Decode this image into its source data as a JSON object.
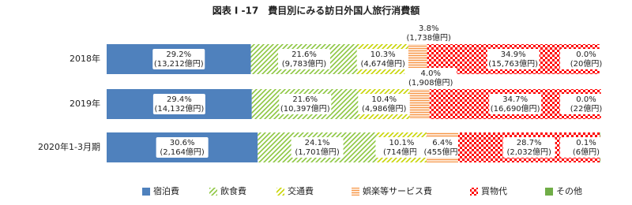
{
  "chart_data": {
    "type": "stacked-bar-horizontal",
    "title": "図表 I -17　費目別にみる訪日外国人旅行消費額",
    "categories": [
      "2018年",
      "2019年",
      "2020年1-3月期"
    ],
    "xlim": [
      0,
      100
    ],
    "series": [
      {
        "name": "宿泊費",
        "color": "#4f81bd",
        "hatch": "solid",
        "values": [
          29.2,
          29.4,
          30.6
        ],
        "value_labels": [
          "29.2%",
          "29.4%",
          "30.6%"
        ],
        "amount_labels": [
          "(13,212億円)",
          "(14,132億円)",
          "(2,164億円)"
        ]
      },
      {
        "name": "飲食費",
        "color": "#8cc63f",
        "hatch": "diagonal",
        "values": [
          21.6,
          21.6,
          24.1
        ],
        "value_labels": [
          "21.6%",
          "21.6%",
          "24.1%"
        ],
        "amount_labels": [
          "(9,783億円)",
          "(10,397億円)",
          "(1,701億円)"
        ]
      },
      {
        "name": "交通費",
        "color": "#c8d400",
        "hatch": "diagonal",
        "values": [
          10.3,
          10.4,
          10.1
        ],
        "value_labels": [
          "10.3%",
          "10.4%",
          "10.1%"
        ],
        "amount_labels": [
          "(4,674億円)",
          "(4,986億円)",
          "(714億円)"
        ]
      },
      {
        "name": "娯楽等サービス費",
        "color": "#f79646",
        "hatch": "horizontal",
        "values": [
          3.8,
          4.0,
          6.4
        ],
        "value_labels": [
          "3.8%",
          "4.0%",
          "6.4%"
        ],
        "amount_labels": [
          "(1,738億円)",
          "(1,908億円)",
          "(455億円)"
        ]
      },
      {
        "name": "買物代",
        "color": "#ff0000",
        "hatch": "checker",
        "values": [
          34.9,
          34.7,
          28.7
        ],
        "value_labels": [
          "34.9%",
          "34.7%",
          "28.7%"
        ],
        "amount_labels": [
          "(15,763億円)",
          "(16,690億円)",
          "(2,032億円)"
        ]
      },
      {
        "name": "その他",
        "color": "#70ad47",
        "hatch": "solid",
        "values": [
          0.0,
          0.0,
          0.1
        ],
        "value_labels": [
          "0.0%",
          "0.0%",
          "0.1%"
        ],
        "amount_labels": [
          "(20億円)",
          "(22億円)",
          "(6億円)"
        ]
      }
    ]
  }
}
